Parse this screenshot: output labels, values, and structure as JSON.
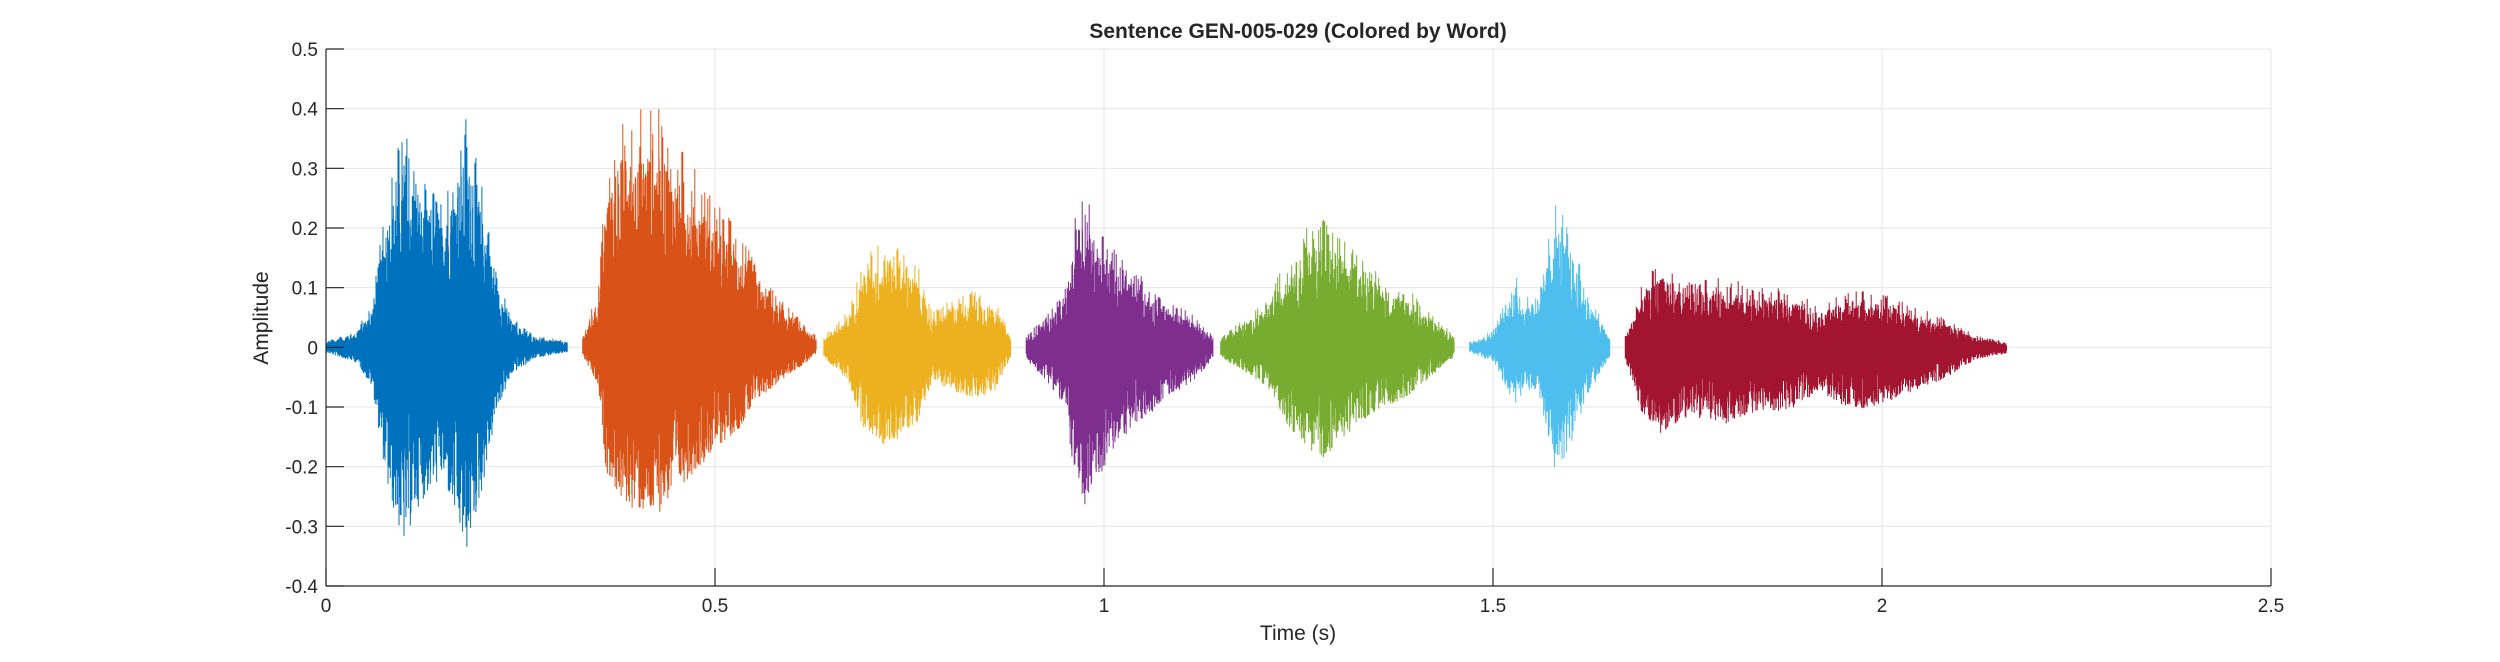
{
  "chart_data": {
    "type": "line",
    "title": "Sentence GEN-005-029 (Colored by Word)",
    "xlabel": "Time (s)",
    "ylabel": "Amplitude",
    "xlim": [
      0,
      2.5
    ],
    "ylim": [
      -0.4,
      0.5
    ],
    "xticks": [
      0,
      0.5,
      1,
      1.5,
      2,
      2.5
    ],
    "xtick_labels": [
      "0",
      "0.5",
      "1",
      "1.5",
      "2",
      "2.5"
    ],
    "yticks": [
      -0.4,
      -0.3,
      -0.2,
      -0.1,
      0,
      0.1,
      0.2,
      0.3,
      0.4,
      0.5
    ],
    "ytick_labels": [
      "-0.4",
      "-0.3",
      "-0.2",
      "-0.1",
      "0",
      "0.1",
      "0.2",
      "0.3",
      "0.4",
      "0.5"
    ],
    "grid": true,
    "legend": "none",
    "segments": [
      {
        "start": 0.0,
        "end": 0.31,
        "color": "#0072BD",
        "peak_pos": 0.4,
        "peak_neg": -0.35,
        "envelope": [
          [
            0.0,
            0.01
          ],
          [
            0.04,
            0.03
          ],
          [
            0.06,
            0.08
          ],
          [
            0.08,
            0.28
          ],
          [
            0.1,
            0.38
          ],
          [
            0.12,
            0.3
          ],
          [
            0.15,
            0.25
          ],
          [
            0.18,
            0.4
          ],
          [
            0.2,
            0.28
          ],
          [
            0.22,
            0.12
          ],
          [
            0.24,
            0.05
          ],
          [
            0.27,
            0.02
          ],
          [
            0.31,
            0.01
          ]
        ]
      },
      {
        "start": 0.33,
        "end": 0.63,
        "color": "#D95319",
        "peak_pos": 0.42,
        "peak_neg": -0.29,
        "envelope": [
          [
            0.33,
            0.02
          ],
          [
            0.35,
            0.1
          ],
          [
            0.36,
            0.3
          ],
          [
            0.38,
            0.38
          ],
          [
            0.42,
            0.42
          ],
          [
            0.46,
            0.33
          ],
          [
            0.5,
            0.25
          ],
          [
            0.53,
            0.2
          ],
          [
            0.56,
            0.12
          ],
          [
            0.6,
            0.06
          ],
          [
            0.63,
            0.02
          ]
        ]
      },
      {
        "start": 0.64,
        "end": 0.88,
        "color": "#EDB120",
        "peak_pos": 0.19,
        "peak_neg": -0.17,
        "envelope": [
          [
            0.64,
            0.02
          ],
          [
            0.67,
            0.06
          ],
          [
            0.69,
            0.15
          ],
          [
            0.72,
            0.19
          ],
          [
            0.76,
            0.14
          ],
          [
            0.78,
            0.06
          ],
          [
            0.8,
            0.08
          ],
          [
            0.84,
            0.1
          ],
          [
            0.86,
            0.08
          ],
          [
            0.88,
            0.02
          ]
        ]
      },
      {
        "start": 0.9,
        "end": 1.14,
        "color": "#7E2F8E",
        "peak_pos": 0.28,
        "peak_neg": -0.29,
        "envelope": [
          [
            0.9,
            0.02
          ],
          [
            0.93,
            0.06
          ],
          [
            0.95,
            0.1
          ],
          [
            0.97,
            0.28
          ],
          [
            0.99,
            0.22
          ],
          [
            1.02,
            0.15
          ],
          [
            1.05,
            0.12
          ],
          [
            1.08,
            0.08
          ],
          [
            1.11,
            0.06
          ],
          [
            1.14,
            0.02
          ]
        ]
      },
      {
        "start": 1.15,
        "end": 1.45,
        "color": "#77AC30",
        "peak_pos": 0.23,
        "peak_neg": -0.19,
        "envelope": [
          [
            1.15,
            0.02
          ],
          [
            1.18,
            0.05
          ],
          [
            1.21,
            0.08
          ],
          [
            1.24,
            0.17
          ],
          [
            1.28,
            0.23
          ],
          [
            1.31,
            0.18
          ],
          [
            1.35,
            0.13
          ],
          [
            1.39,
            0.1
          ],
          [
            1.42,
            0.06
          ],
          [
            1.45,
            0.02
          ]
        ]
      },
      {
        "start": 1.47,
        "end": 1.65,
        "color": "#4DBEEE",
        "peak_pos": 0.25,
        "peak_neg": -0.21,
        "envelope": [
          [
            1.47,
            0.01
          ],
          [
            1.5,
            0.03
          ],
          [
            1.53,
            0.12
          ],
          [
            1.54,
            0.08
          ],
          [
            1.56,
            0.1
          ],
          [
            1.58,
            0.25
          ],
          [
            1.6,
            0.2
          ],
          [
            1.62,
            0.1
          ],
          [
            1.65,
            0.02
          ]
        ]
      },
      {
        "start": 1.67,
        "end": 2.16,
        "color": "#A2142F",
        "peak_pos": 0.16,
        "peak_neg": -0.17,
        "envelope": [
          [
            1.67,
            0.02
          ],
          [
            1.69,
            0.1
          ],
          [
            1.71,
            0.14
          ],
          [
            1.75,
            0.11
          ],
          [
            1.8,
            0.12
          ],
          [
            1.84,
            0.1
          ],
          [
            1.88,
            0.1
          ],
          [
            1.92,
            0.07
          ],
          [
            1.96,
            0.1
          ],
          [
            2.0,
            0.09
          ],
          [
            2.04,
            0.07
          ],
          [
            2.08,
            0.05
          ],
          [
            2.12,
            0.02
          ],
          [
            2.16,
            0.01
          ]
        ]
      }
    ]
  }
}
